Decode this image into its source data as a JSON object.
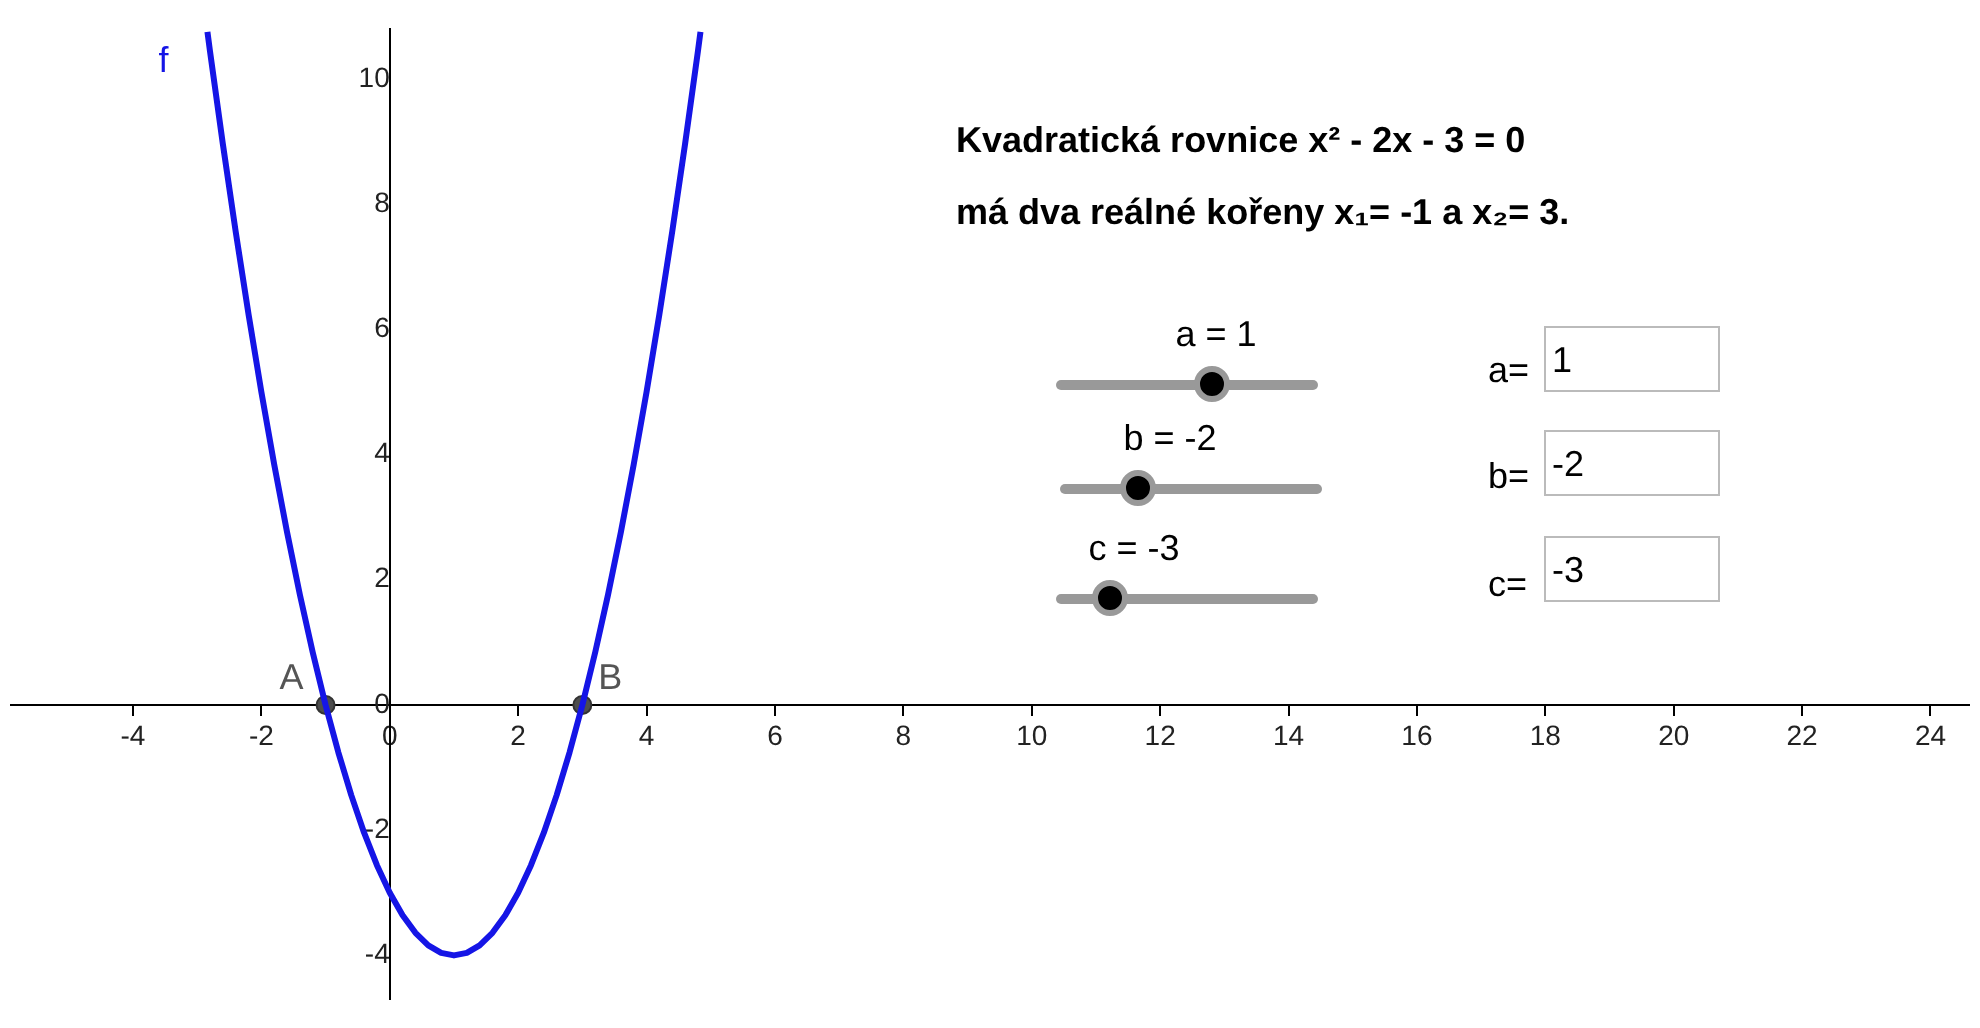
{
  "chart_data": {
    "type": "line",
    "xlim": [
      -5.9,
      24.6
    ],
    "ylim": [
      -4.7,
      10.8
    ],
    "xticks": [
      -4,
      -2,
      0,
      2,
      4,
      6,
      8,
      10,
      12,
      14,
      16,
      18,
      20,
      22,
      24
    ],
    "yticks": [
      -4,
      -2,
      0,
      2,
      4,
      6,
      8,
      10
    ],
    "grid": false,
    "legend": false,
    "series": [
      {
        "name": "f",
        "type": "line",
        "color": "#1515e6",
        "x": [
          -2.84,
          -2.8,
          -2.6,
          -2.4,
          -2.2,
          -2,
          -1.8,
          -1.6,
          -1.4,
          -1.2,
          -1,
          -0.8,
          -0.6,
          -0.4,
          -0.2,
          0,
          0.2,
          0.4,
          0.6,
          0.8,
          1,
          1.2,
          1.4,
          1.6,
          1.8,
          2,
          2.2,
          2.4,
          2.6,
          2.8,
          3,
          3.2,
          3.4,
          3.6,
          3.8,
          4,
          4.2,
          4.4,
          4.6,
          4.8,
          4.84
        ],
        "values": [
          10.75,
          10.44,
          8.96,
          7.56,
          6.24,
          5,
          3.84,
          2.76,
          1.76,
          0.84,
          0,
          -0.76,
          -1.44,
          -2.04,
          -2.56,
          -3,
          -3.36,
          -3.64,
          -3.84,
          -3.96,
          -4,
          -3.96,
          -3.84,
          -3.64,
          -3.36,
          -3,
          -2.56,
          -2.04,
          -1.44,
          -0.76,
          0,
          0.84,
          1.76,
          2.76,
          3.84,
          5,
          6.24,
          7.56,
          8.96,
          10.44,
          10.75
        ]
      },
      {
        "type": "scatter",
        "color": "#4d4d4d",
        "marker": "circle",
        "x": [
          -1,
          3
        ],
        "values": [
          0,
          0
        ],
        "value_labels": [
          "A",
          "B"
        ]
      }
    ],
    "annotations": [
      "Kvadratická rovnice  x² - 2x - 3 = 0",
      "má dva reálné kořeny  x₁= -1 a x₂= 3.",
      "a = 1",
      "b = -2",
      "c = -3",
      "a=",
      "1",
      "b=",
      "-2",
      "c=",
      "-3"
    ]
  }
}
